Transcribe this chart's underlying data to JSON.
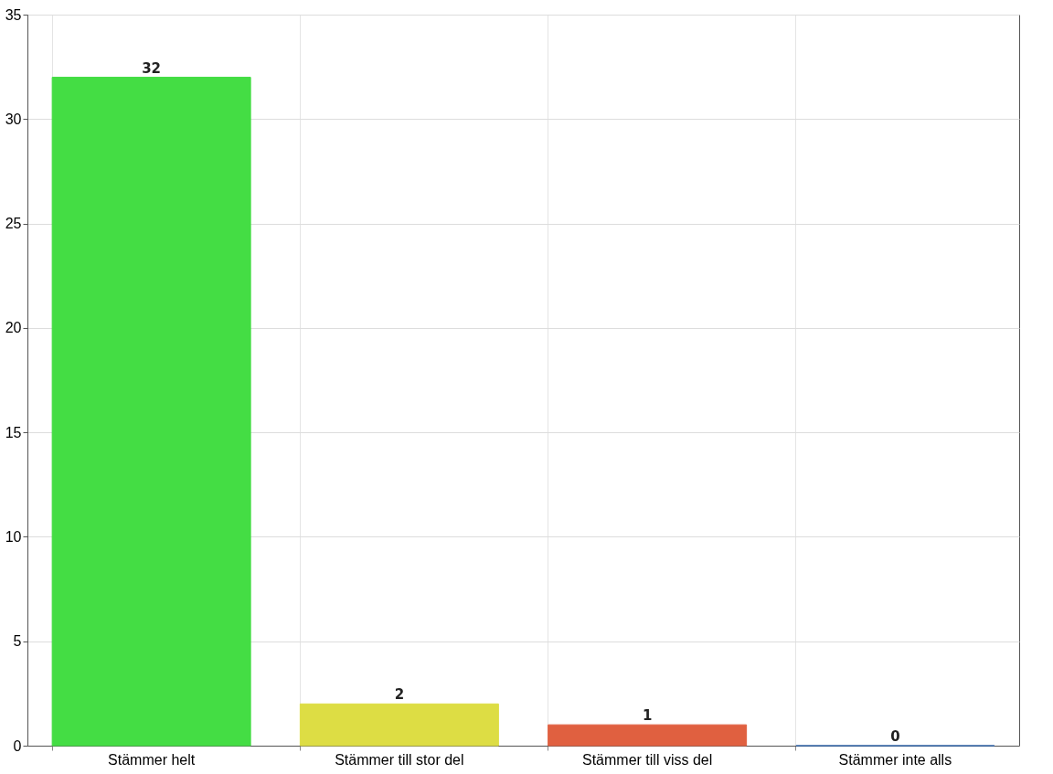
{
  "chart_data": {
    "type": "bar",
    "categories": [
      "Stämmer helt",
      "Stämmer till stor del",
      "Stämmer till viss del",
      "Stämmer inte alls"
    ],
    "values": [
      32,
      2,
      1,
      0
    ],
    "colors": [
      "#44dd44",
      "#dddd44",
      "#e06040",
      "#3366aa"
    ],
    "ylim": [
      0,
      35
    ],
    "yticks": [
      0,
      5,
      10,
      15,
      20,
      25,
      30,
      35
    ],
    "grid": true,
    "data_labels": true
  }
}
